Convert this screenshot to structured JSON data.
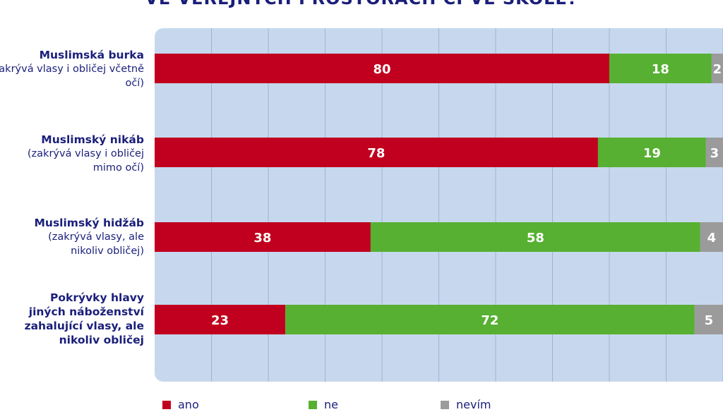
{
  "title": "VE VEŘEJNÝCH PROSTORÁCH ČI VE ŠKOLE?",
  "chart_data": {
    "type": "bar",
    "orientation": "horizontal",
    "stacked": true,
    "xlim": [
      0,
      100
    ],
    "grid": true,
    "categories": [
      {
        "title": "Muslimská burka",
        "subtitle": "(zakrývá vlasy i obličej včetně očí)"
      },
      {
        "title": "Muslimský nikáb",
        "subtitle": "(zakrývá vlasy i obličej mimo očí)"
      },
      {
        "title": "Muslimský hidžáb",
        "subtitle": "(zakrývá vlasy, ale nikoliv obličej)"
      },
      {
        "title": "Pokrývky hlavy jiných náboženství zahalující vlasy, ale nikoliv obličej",
        "subtitle": ""
      }
    ],
    "series": [
      {
        "name": "ano",
        "color": "#c0001e",
        "values": [
          80,
          78,
          38,
          23
        ]
      },
      {
        "name": "ne",
        "color": "#57b031",
        "values": [
          18,
          19,
          58,
          72
        ]
      },
      {
        "name": "nevím",
        "color": "#9b9b9b",
        "values": [
          2,
          3,
          4,
          5
        ]
      }
    ],
    "legend_position": "bottom"
  }
}
